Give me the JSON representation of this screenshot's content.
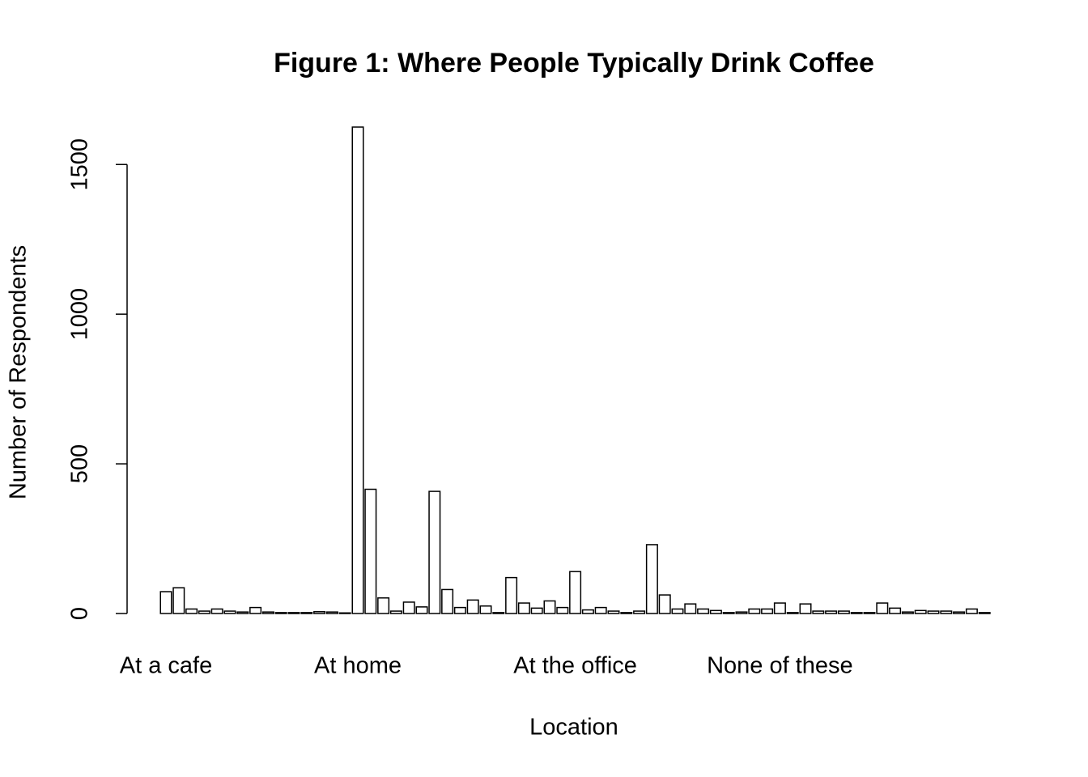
{
  "chart_data": {
    "type": "bar",
    "title": "Figure 1: Where People Typically Drink Coffee",
    "x_label": "Location",
    "y_label": "Number of Respondents",
    "categories": [
      "At a cafe",
      null,
      null,
      null,
      null,
      null,
      null,
      null,
      null,
      null,
      null,
      null,
      null,
      null,
      null,
      "At home",
      null,
      null,
      null,
      null,
      null,
      null,
      null,
      null,
      null,
      null,
      null,
      null,
      null,
      null,
      null,
      null,
      "At the office",
      null,
      null,
      null,
      null,
      null,
      null,
      null,
      null,
      null,
      null,
      null,
      null,
      null,
      null,
      null,
      "None of these",
      null,
      null,
      null,
      null,
      null,
      null,
      null,
      null,
      null,
      null,
      null,
      null,
      null,
      null,
      null,
      null
    ],
    "values": [
      73,
      86,
      15,
      8,
      15,
      8,
      5,
      20,
      5,
      3,
      3,
      3,
      6,
      5,
      2,
      1625,
      415,
      52,
      8,
      38,
      22,
      408,
      80,
      20,
      45,
      25,
      3,
      120,
      35,
      18,
      42,
      20,
      140,
      12,
      20,
      8,
      3,
      8,
      230,
      62,
      15,
      32,
      15,
      10,
      3,
      5,
      15,
      15,
      35,
      3,
      32,
      8,
      8,
      8,
      3,
      3,
      35,
      18,
      5,
      10,
      8,
      8,
      5,
      15,
      3
    ],
    "color": "#ffffff",
    "ylim": [
      0,
      1625
    ],
    "yticks": [
      0,
      500,
      1000,
      1500
    ],
    "grid": false
  }
}
